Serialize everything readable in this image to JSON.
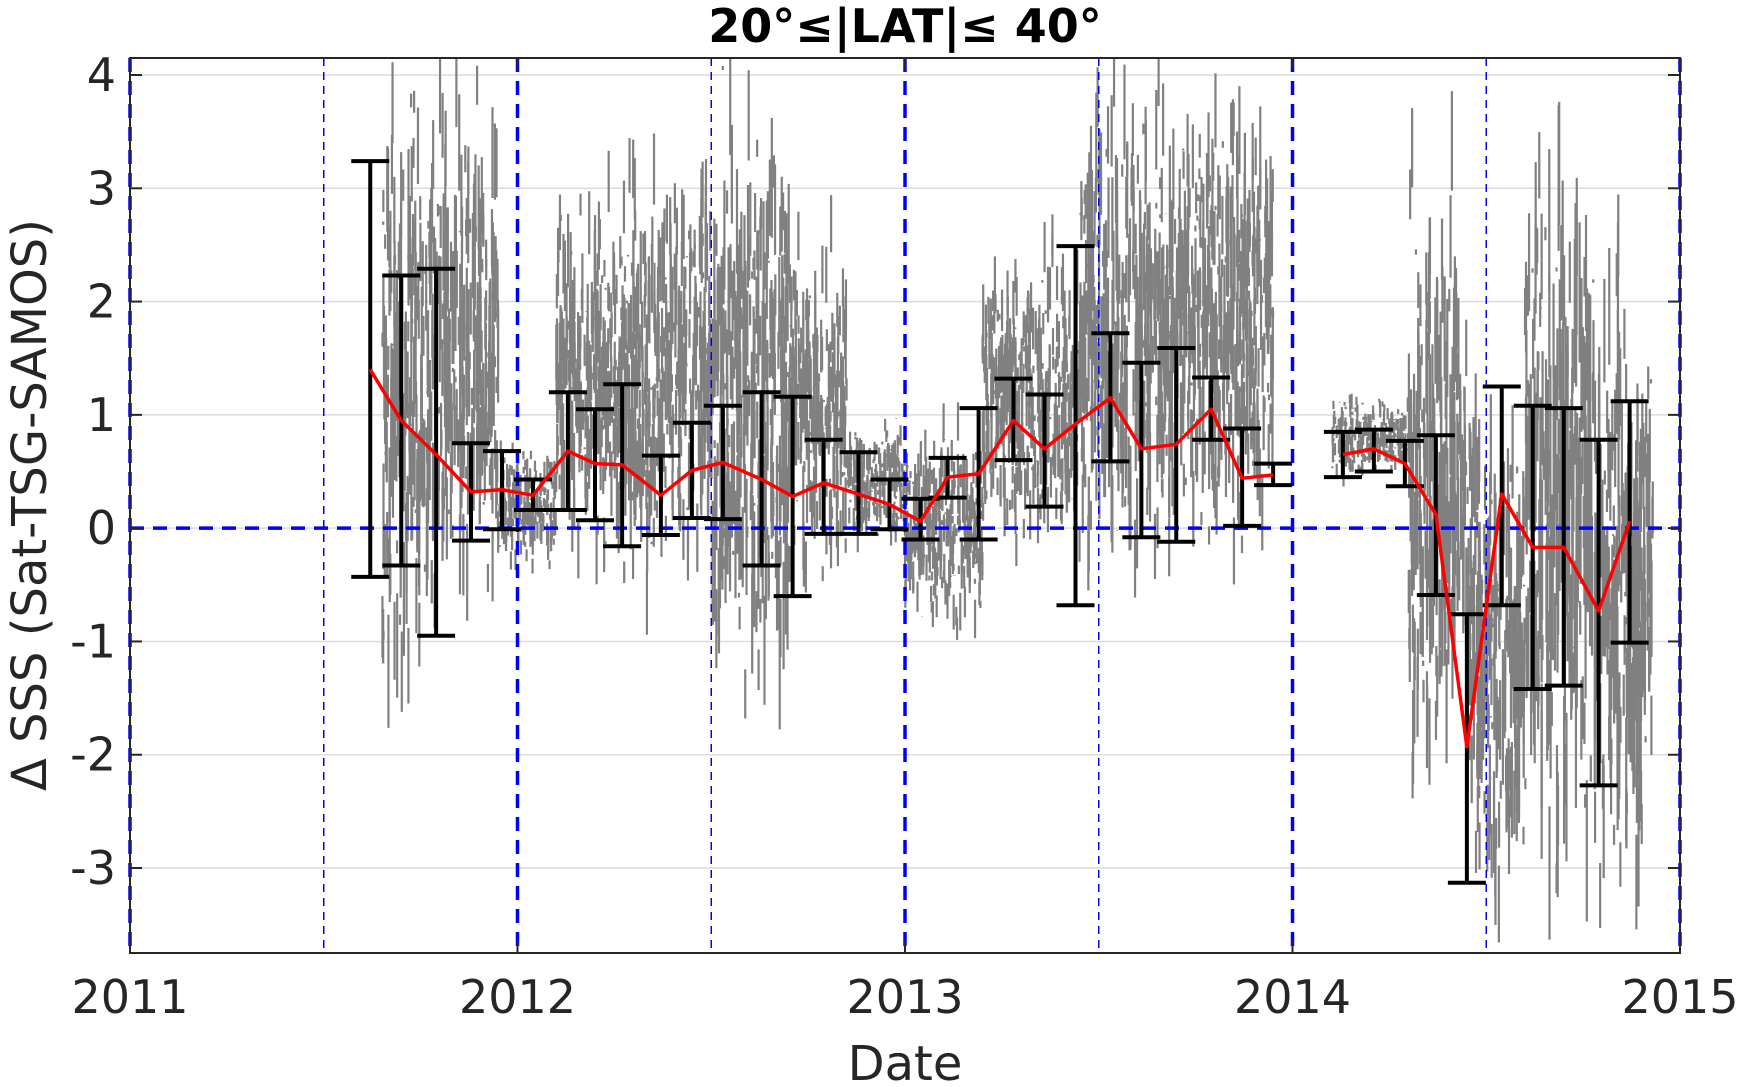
{
  "chart_data": {
    "type": "scatter",
    "title": "20°≤|LAT|≤ 40°",
    "xlabel": "Date",
    "ylabel": "Δ SSS (Sat-TSG-SAMOS)",
    "xlim": [
      2011.0,
      2015.0
    ],
    "ylim": [
      -3.75,
      4.15
    ],
    "xticks": [
      2011,
      2012,
      2013,
      2014,
      2015
    ],
    "xtick_labels": [
      "2011",
      "2012",
      "2013",
      "2014",
      "2015"
    ],
    "yticks": [
      -3,
      -2,
      -1,
      0,
      1,
      2,
      3,
      4
    ],
    "ytick_labels": [
      "-3",
      "-2",
      "-1",
      "0",
      "1",
      "2",
      "3",
      "4"
    ],
    "grid": "horizontal",
    "reference_lines": {
      "zero_line": 0,
      "year_lines": [
        2011,
        2012,
        2013,
        2014,
        2015
      ],
      "half_year_lines": [
        2011.5,
        2012.5,
        2013.5,
        2014.5
      ],
      "color": "#0000ff"
    },
    "scatter_color": "#808080",
    "mean_line_color": "#ff0000",
    "errorbar_color": "#000000",
    "scatter_clusters": [
      {
        "x": [
          2011.65,
          2011.78
        ],
        "lo": -1.6,
        "hi": 4.15
      },
      {
        "x": [
          2011.78,
          2011.95
        ],
        "lo": -1.0,
        "hi": 4.15
      },
      {
        "x": [
          2011.95,
          2012.1
        ],
        "lo": -0.4,
        "hi": 0.8
      },
      {
        "x": [
          2012.1,
          2012.35
        ],
        "lo": -0.6,
        "hi": 3.2
      },
      {
        "x": [
          2012.35,
          2012.5
        ],
        "lo": -0.5,
        "hi": 3.5
      },
      {
        "x": [
          2012.5,
          2012.7
        ],
        "lo": -1.9,
        "hi": 4.15
      },
      {
        "x": [
          2012.7,
          2012.85
        ],
        "lo": -0.6,
        "hi": 2.8
      },
      {
        "x": [
          2012.85,
          2013.0
        ],
        "lo": -0.2,
        "hi": 1.0
      },
      {
        "x": [
          2013.0,
          2013.2
        ],
        "lo": -1.0,
        "hi": 1.0
      },
      {
        "x": [
          2013.2,
          2013.45
        ],
        "lo": -0.3,
        "hi": 2.6
      },
      {
        "x": [
          2013.45,
          2013.7
        ],
        "lo": -0.8,
        "hi": 4.15
      },
      {
        "x": [
          2013.7,
          2013.95
        ],
        "lo": -0.4,
        "hi": 4.15
      },
      {
        "x": [
          2014.1,
          2014.3
        ],
        "lo": 0.4,
        "hi": 1.2
      },
      {
        "x": [
          2014.3,
          2014.45
        ],
        "lo": -2.5,
        "hi": 3.3
      },
      {
        "x": [
          2014.45,
          2014.6
        ],
        "lo": -3.7,
        "hi": 1.6
      },
      {
        "x": [
          2014.6,
          2014.78
        ],
        "lo": -3.7,
        "hi": 4.15
      },
      {
        "x": [
          2014.78,
          2014.93
        ],
        "lo": -3.7,
        "hi": 2.6
      }
    ],
    "mean_series_1": {
      "x": [
        2011.62,
        2011.7,
        2011.79,
        2011.88,
        2011.96,
        2012.04,
        2012.13,
        2012.2,
        2012.27,
        2012.37,
        2012.45,
        2012.53,
        2012.63,
        2012.71,
        2012.79,
        2012.88,
        2012.96,
        2013.04,
        2013.11,
        2013.19,
        2013.28,
        2013.36,
        2013.44,
        2013.53,
        2013.61,
        2013.7,
        2013.79,
        2013.87,
        2013.95
      ],
      "mean": [
        1.4,
        0.95,
        0.65,
        0.32,
        0.34,
        0.29,
        0.68,
        0.57,
        0.56,
        0.29,
        0.51,
        0.58,
        0.43,
        0.28,
        0.4,
        0.3,
        0.21,
        0.06,
        0.45,
        0.48,
        0.95,
        0.7,
        0.92,
        1.15,
        0.7,
        0.74,
        1.05,
        0.44,
        0.47
      ],
      "lower": [
        -0.43,
        -0.33,
        -0.95,
        -0.11,
        -0.01,
        0.16,
        0.16,
        0.07,
        -0.16,
        -0.06,
        0.09,
        0.08,
        -0.33,
        -0.6,
        -0.05,
        -0.05,
        -0.01,
        -0.1,
        0.27,
        -0.1,
        0.6,
        0.19,
        -0.68,
        0.59,
        -0.08,
        -0.12,
        0.78,
        0.02,
        0.38
      ],
      "upper": [
        3.24,
        2.23,
        2.29,
        0.75,
        0.68,
        0.43,
        1.2,
        1.05,
        1.27,
        0.64,
        0.93,
        1.08,
        1.2,
        1.16,
        0.78,
        0.67,
        0.43,
        0.26,
        0.62,
        1.06,
        1.32,
        1.18,
        2.49,
        1.72,
        1.46,
        1.59,
        1.33,
        0.88,
        0.57
      ]
    },
    "mean_series_2": {
      "x": [
        2014.13,
        2014.21,
        2014.29,
        2014.37,
        2014.45,
        2014.54,
        2014.62,
        2014.7,
        2014.79,
        2014.87
      ],
      "mean": [
        0.65,
        0.7,
        0.57,
        0.12,
        -1.93,
        0.3,
        -0.17,
        -0.17,
        -0.73,
        0.06
      ],
      "lower": [
        0.45,
        0.5,
        0.37,
        -0.59,
        -3.13,
        -0.68,
        -1.42,
        -1.39,
        -2.27,
        -1.01
      ],
      "upper": [
        0.85,
        0.87,
        0.77,
        0.82,
        -0.76,
        1.25,
        1.08,
        1.06,
        0.78,
        1.12
      ]
    }
  }
}
